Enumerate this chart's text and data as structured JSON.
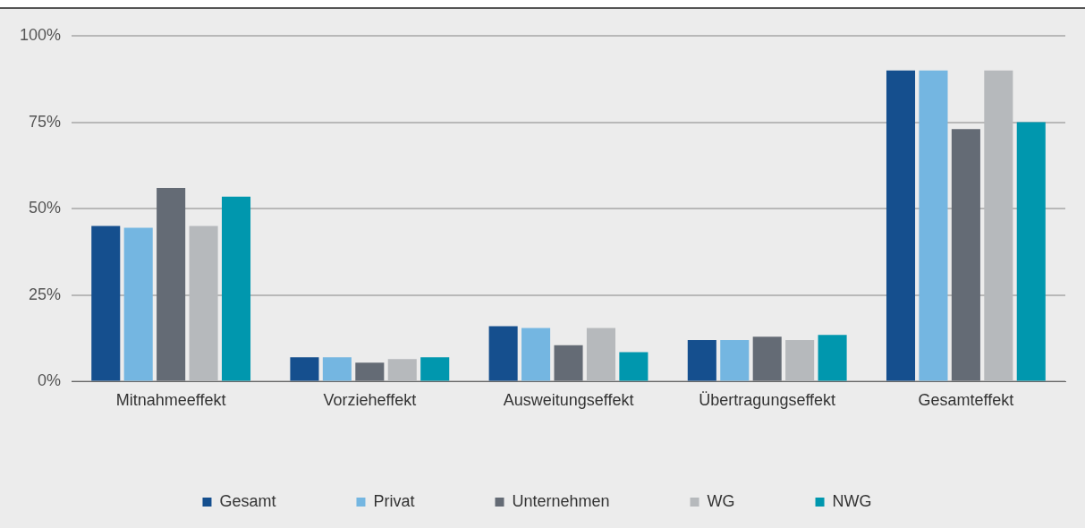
{
  "chart_data": {
    "type": "bar",
    "categories": [
      "Mitnahmeeffekt",
      "Vorzieheffekt",
      "Ausweitungseffekt",
      "Übertragungseffekt",
      "Gesamteffekt"
    ],
    "series": [
      {
        "name": "Gesamt",
        "color": "#154f8e",
        "values": [
          45,
          7,
          16,
          12,
          90
        ]
      },
      {
        "name": "Privat",
        "color": "#74b6e1",
        "values": [
          44.5,
          7,
          15.5,
          12,
          90
        ]
      },
      {
        "name": "Unternehmen",
        "color": "#646b75",
        "values": [
          56,
          5.5,
          10.5,
          13,
          73
        ]
      },
      {
        "name": "WG",
        "color": "#b6b9bc",
        "values": [
          45,
          6.5,
          15.5,
          12,
          90
        ]
      },
      {
        "name": "NWG",
        "color": "#0097ae",
        "values": [
          53.5,
          7,
          8.5,
          13.5,
          75
        ]
      }
    ],
    "ylim": [
      0,
      100
    ],
    "yticks": [
      {
        "value": 0,
        "label": "0%"
      },
      {
        "value": 25,
        "label": "25%"
      },
      {
        "value": 50,
        "label": "50%"
      },
      {
        "value": 75,
        "label": "75%"
      },
      {
        "value": 100,
        "label": "100%"
      }
    ],
    "grid": "y",
    "legend": "bottom"
  }
}
